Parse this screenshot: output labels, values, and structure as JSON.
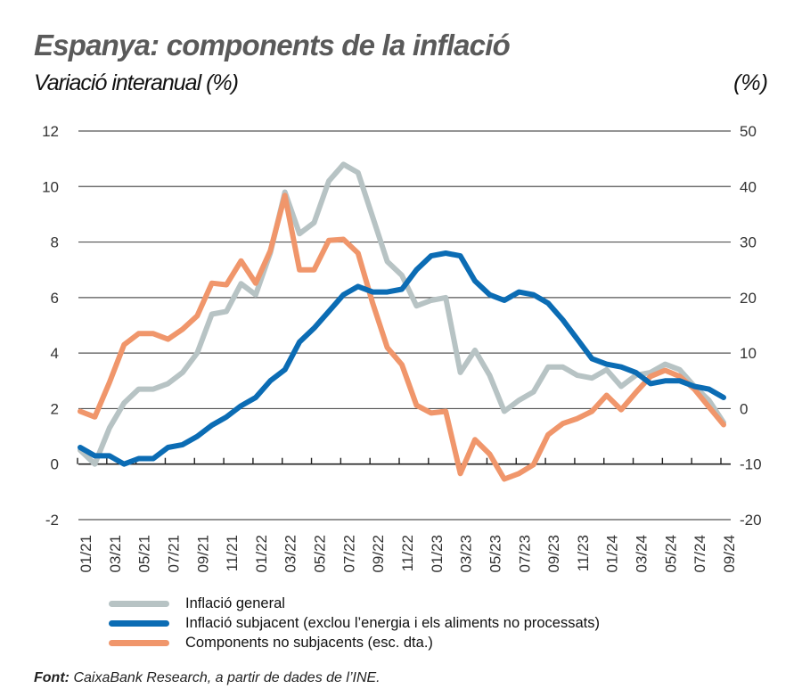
{
  "header": {
    "title": "Espanya: components de la inflació",
    "subtitle": "Variació interanual (%)",
    "right_unit": "(%)"
  },
  "legend": [
    {
      "label": "Inflació general",
      "color": "#b7c3c4"
    },
    {
      "label": "Inflació subjacent (exclou l’energia i els aliments no processats)",
      "color": "#0b6cb4"
    },
    {
      "label": "Components no subjacents (esc. dta.)",
      "color": "#f0966b"
    }
  ],
  "source": {
    "label": "Font:",
    "text": "CaixaBank Research, a partir de dades de l’INE."
  },
  "chart_data": {
    "type": "line",
    "title": "Espanya: components de la inflació",
    "subtitle": "Variació interanual (%)",
    "xlabel": "",
    "ylabel_left": "Variació interanual (%)",
    "ylabel_right": "(%)",
    "ylim_left": [
      -2,
      12
    ],
    "ylim_right": [
      -20,
      50
    ],
    "yticks_left": [
      "12",
      "10",
      "8",
      "6",
      "4",
      "2",
      "0",
      "-2"
    ],
    "yticks_left_values": [
      12,
      10,
      8,
      6,
      4,
      2,
      0,
      -2
    ],
    "yticks_right": [
      "50",
      "40",
      "30",
      "20",
      "10",
      "0",
      "-10",
      "-20"
    ],
    "yticks_right_values": [
      50,
      40,
      30,
      20,
      10,
      0,
      -10,
      -20
    ],
    "grid": true,
    "legend_position": "bottom-left",
    "x": [
      "01/21",
      "02/21",
      "03/21",
      "04/21",
      "05/21",
      "06/21",
      "07/21",
      "08/21",
      "09/21",
      "10/21",
      "11/21",
      "12/21",
      "01/22",
      "02/22",
      "03/22",
      "04/22",
      "05/22",
      "06/22",
      "07/22",
      "08/22",
      "09/22",
      "10/22",
      "11/22",
      "12/22",
      "01/23",
      "02/23",
      "03/23",
      "04/23",
      "05/23",
      "06/23",
      "07/23",
      "08/23",
      "09/23",
      "10/23",
      "11/23",
      "12/23",
      "01/24",
      "02/24",
      "03/24",
      "04/24",
      "05/24",
      "06/24",
      "07/24",
      "08/24",
      "09/24"
    ],
    "xtick_labels": [
      "01/21",
      "03/21",
      "05/21",
      "07/21",
      "09/21",
      "11/21",
      "01/22",
      "03/22",
      "05/22",
      "07/22",
      "09/22",
      "11/22",
      "01/23",
      "03/23",
      "05/23",
      "07/23",
      "09/23",
      "11/23",
      "01/24",
      "03/24",
      "05/24",
      "07/24",
      "09/24"
    ],
    "series": [
      {
        "name": "Inflació general",
        "axis": "left",
        "color": "#b7c3c4",
        "values": [
          0.5,
          0.0,
          1.3,
          2.2,
          2.7,
          2.7,
          2.9,
          3.3,
          4.0,
          5.4,
          5.5,
          6.5,
          6.1,
          7.6,
          9.8,
          8.3,
          8.7,
          10.2,
          10.8,
          10.5,
          8.9,
          7.3,
          6.8,
          5.7,
          5.9,
          6.0,
          3.3,
          4.1,
          3.2,
          1.9,
          2.3,
          2.6,
          3.5,
          3.5,
          3.2,
          3.1,
          3.4,
          2.8,
          3.2,
          3.3,
          3.6,
          3.4,
          2.8,
          2.3,
          1.5
        ]
      },
      {
        "name": "Inflació subjacent (exclou l’energia i els aliments no processats)",
        "axis": "left",
        "color": "#0b6cb4",
        "values": [
          0.6,
          0.3,
          0.3,
          0.0,
          0.2,
          0.2,
          0.6,
          0.7,
          1.0,
          1.4,
          1.7,
          2.1,
          2.4,
          3.0,
          3.4,
          4.4,
          4.9,
          5.5,
          6.1,
          6.4,
          6.2,
          6.2,
          6.3,
          7.0,
          7.5,
          7.6,
          7.5,
          6.6,
          6.1,
          5.9,
          6.2,
          6.1,
          5.8,
          5.2,
          4.5,
          3.8,
          3.6,
          3.5,
          3.3,
          2.9,
          3.0,
          3.0,
          2.8,
          2.7,
          2.4
        ]
      },
      {
        "name": "Components no subjacents (esc. dta.)",
        "axis": "right",
        "color": "#f0966b",
        "values": [
          -0.5,
          -1.5,
          4.7,
          11.5,
          13.5,
          13.5,
          12.5,
          14.3,
          16.7,
          22.6,
          22.3,
          26.6,
          22.6,
          28.4,
          38.4,
          25.0,
          25.0,
          30.3,
          30.5,
          28.0,
          19.0,
          11.0,
          7.9,
          0.6,
          -0.8,
          -0.5,
          -11.7,
          -5.6,
          -8.2,
          -12.7,
          -11.7,
          -10.1,
          -4.7,
          -2.7,
          -1.8,
          -0.5,
          2.4,
          -0.2,
          2.9,
          5.8,
          6.9,
          5.8,
          3.5,
          0.3,
          -2.9
        ]
      }
    ]
  }
}
